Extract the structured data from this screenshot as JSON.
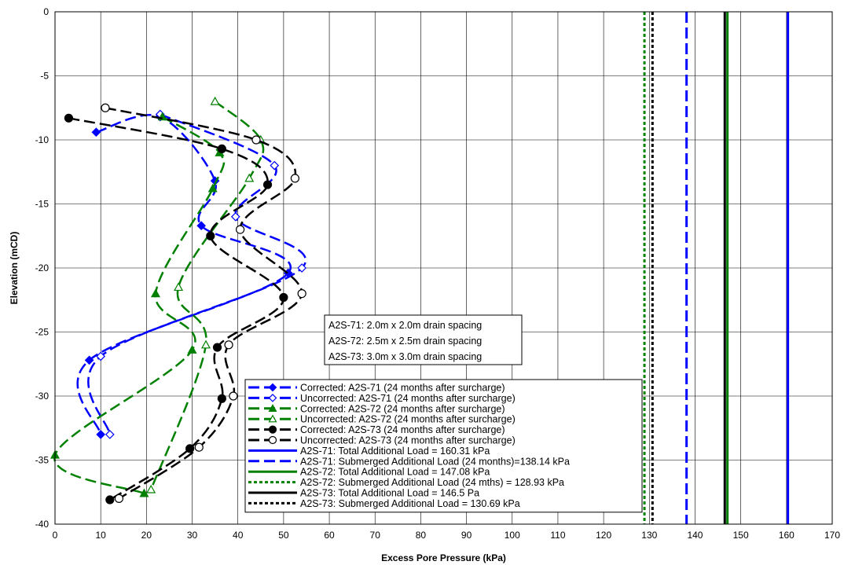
{
  "chart_data": {
    "type": "scatter",
    "title": "",
    "xlabel": "Excess Pore Pressure (kPa)",
    "ylabel": "Elevation (mCD)",
    "xlim": [
      0,
      170
    ],
    "ylim": [
      -40,
      0
    ],
    "xticks": [
      0,
      10,
      20,
      30,
      40,
      50,
      60,
      70,
      80,
      90,
      100,
      110,
      120,
      130,
      140,
      150,
      160,
      170
    ],
    "yticks": [
      0,
      -5,
      -10,
      -15,
      -20,
      -25,
      -30,
      -35,
      -40
    ],
    "grid": true,
    "legend_position": "bottom-center",
    "notes": [
      "A2S-71: 2.0m x 2.0m drain spacing",
      "A2S-72: 2.5m x 2.5m drain spacing",
      "A2S-73: 3.0m x 3.0m drain spacing"
    ],
    "series": [
      {
        "name": "Corrected: A2S-71 (24 months after surcharge)",
        "color": "#0000ff",
        "marker": "diamond-filled",
        "dash": "long",
        "points": [
          [
            9,
            -9.4
          ],
          [
            23,
            -8.2
          ],
          [
            35,
            -13.2
          ],
          [
            32,
            -16.7
          ],
          [
            51,
            -20.4
          ],
          [
            7.5,
            -27.2
          ],
          [
            10,
            -33
          ]
        ]
      },
      {
        "name": "Uncorrected: A2S-71 (24 months after surcharge)",
        "color": "#0000ff",
        "marker": "diamond-open",
        "dash": "long",
        "points": [
          [
            23,
            -8
          ],
          [
            48,
            -12
          ],
          [
            39.5,
            -16
          ],
          [
            54,
            -20
          ],
          [
            10,
            -26.9
          ],
          [
            12,
            -33
          ]
        ]
      },
      {
        "name": "Corrected: A2S-72 (24 months after surcharge)",
        "color": "#008000",
        "marker": "triangle-filled",
        "dash": "long",
        "points": [
          [
            23.5,
            -8.2
          ],
          [
            36,
            -11
          ],
          [
            34.5,
            -13.8
          ],
          [
            22,
            -22
          ],
          [
            30,
            -26.4
          ],
          [
            0,
            -34.6
          ],
          [
            19.5,
            -37.6
          ]
        ]
      },
      {
        "name": "Uncorrected: A2S-72 (24 months after surcharge)",
        "color": "#008000",
        "marker": "triangle-open",
        "dash": "long",
        "points": [
          [
            35,
            -7
          ],
          [
            45,
            -10
          ],
          [
            42.5,
            -13
          ],
          [
            27,
            -21.5
          ],
          [
            33,
            -26
          ],
          [
            21,
            -37.3
          ]
        ]
      },
      {
        "name": "Corrected: A2S-73 (24 months after surcharge)",
        "color": "#000000",
        "marker": "circle-filled",
        "dash": "long",
        "points": [
          [
            3,
            -8.3
          ],
          [
            36.5,
            -10.7
          ],
          [
            46.5,
            -13.5
          ],
          [
            34,
            -17.5
          ],
          [
            50,
            -22.3
          ],
          [
            35.5,
            -26.2
          ],
          [
            36.5,
            -30.2
          ],
          [
            29.5,
            -34.1
          ],
          [
            12,
            -38.1
          ]
        ]
      },
      {
        "name": "Uncorrected: A2S-73 (24 months after surcharge)",
        "color": "#000000",
        "marker": "circle-open",
        "dash": "long",
        "points": [
          [
            11,
            -7.5
          ],
          [
            44,
            -10
          ],
          [
            52.5,
            -13
          ],
          [
            40.5,
            -17
          ],
          [
            54,
            -22
          ],
          [
            38,
            -26
          ],
          [
            39,
            -30
          ],
          [
            31.5,
            -34
          ],
          [
            14,
            -38
          ]
        ]
      }
    ],
    "vertical_lines": [
      {
        "name": "A2S-71: Total Additional Load = 160.31 kPa",
        "x": 160.31,
        "color": "#0000ff",
        "style": "solid"
      },
      {
        "name": "A2S-71: Submerged Additional Load (24 months)=138.14 kPa",
        "x": 138.14,
        "color": "#0000ff",
        "style": "dashed"
      },
      {
        "name": "A2S-72: Total Additional Load = 147.08 kPa",
        "x": 147.08,
        "color": "#008000",
        "style": "solid"
      },
      {
        "name": "A2S-72: Submerged Additional Load (24 mths) = 128.93 kPa",
        "x": 128.93,
        "color": "#008000",
        "style": "dotted"
      },
      {
        "name": "A2S-73: Total Additional Load = 146.5 Pa",
        "x": 146.5,
        "color": "#000000",
        "style": "solid"
      },
      {
        "name": "A2S-73: Submerged Additional Load = 130.69 kPa",
        "x": 130.69,
        "color": "#000000",
        "style": "dotted"
      }
    ]
  }
}
